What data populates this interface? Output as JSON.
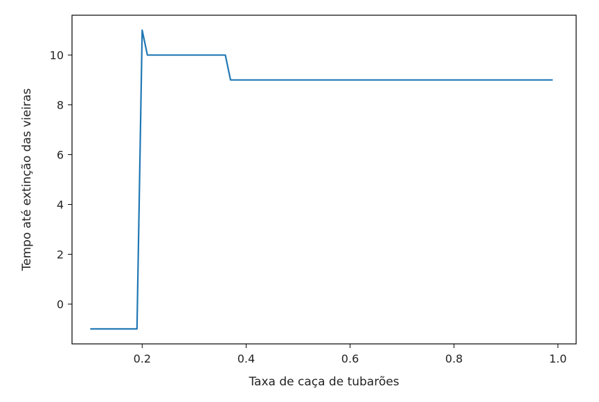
{
  "chart_data": {
    "type": "line",
    "title": "",
    "xlabel": "Taxa de caça de tubarões",
    "ylabel": "Tempo até extinção das vieiras",
    "xlim": [
      0.065,
      1.035
    ],
    "ylim": [
      -1.6,
      11.6
    ],
    "xticks": [
      "0.2",
      "0.4",
      "0.6",
      "0.8",
      "1.0"
    ],
    "yticks": [
      "0",
      "2",
      "4",
      "6",
      "8",
      "10"
    ],
    "grid": false,
    "series": [
      {
        "color": "#1f77b4",
        "x": [
          0.1,
          0.19,
          0.2,
          0.21,
          0.36,
          0.37,
          0.99
        ],
        "y": [
          -1,
          -1,
          11,
          10,
          10,
          9,
          9
        ]
      }
    ]
  }
}
